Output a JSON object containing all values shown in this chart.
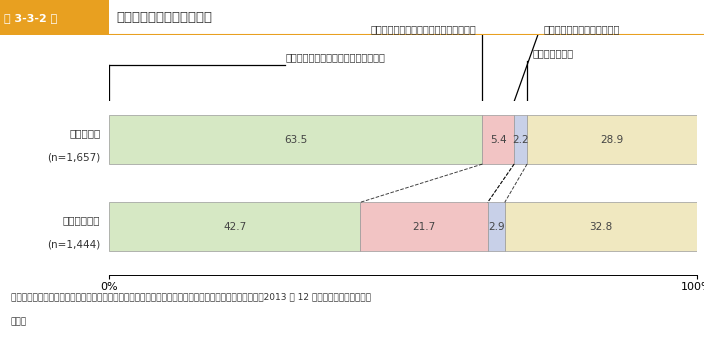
{
  "title_left": "第 3-3-2 図",
  "title_right": "現経営者の事業継続の意思",
  "rows": [
    {
      "label_line1": "中規模企業",
      "label_line2": "(n=1,657)",
      "values": [
        63.5,
        5.4,
        2.2,
        28.9
      ],
      "colors": [
        "#d6e8c4",
        "#f2c4c4",
        "#c8d0e8",
        "#f0e8c0"
      ]
    },
    {
      "label_line1": "小規模事業者",
      "label_line2": "(n=1,444)",
      "values": [
        42.7,
        21.7,
        2.9,
        32.8
      ],
      "colors": [
        "#d6e8c4",
        "#f2c4c4",
        "#c8d0e8",
        "#f0e8c0"
      ]
    }
  ],
  "legend_labels": [
    "事業を何らかの形で他者に引継ぎたい",
    "自分の代で廃業することもやむを得ない",
    "自分の代で事業を売却したい",
    "まだ分からない"
  ],
  "source_line1": "資料：中小企業庁委託「中小企業者・小規模企業者の経営実態及び事業承継に関するアンケート調査」（2013 年 12 月、（株）帝国データバ",
  "source_line2": "ンク）",
  "header_color": "#e8a020",
  "bar_border_color": "#999999",
  "title_color": "#333333",
  "bg_color": "#ffffff"
}
